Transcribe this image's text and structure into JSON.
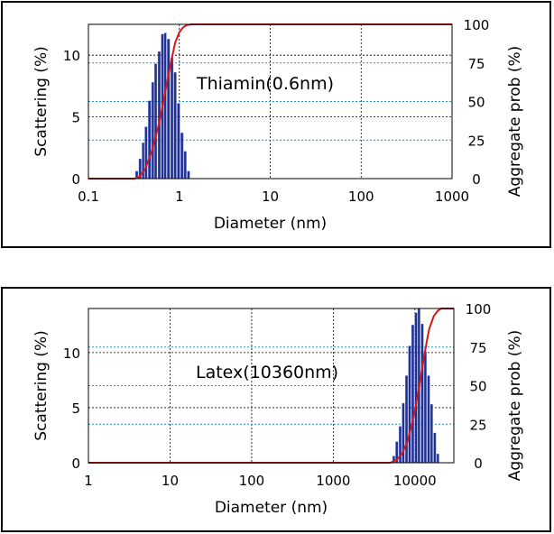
{
  "colors": {
    "bars": "#1f2f8f",
    "bar_edge": "#6f7fd0",
    "curve": "#d41818",
    "dotted_grid": "#1a96c8",
    "grid": "#000000"
  },
  "chart_data": [
    {
      "type": "bar",
      "title": "",
      "annotation": "Thiamin(0.6nm)",
      "xlabel": "Diameter (nm)",
      "ylabel": "Scattering (%)",
      "y2label": "Aggregate prob (%)",
      "x_scale": "log",
      "xlim": [
        0.1,
        1000
      ],
      "ylim": [
        0,
        12.5
      ],
      "y2lim": [
        0,
        100
      ],
      "xticks": [
        0.1,
        1,
        10,
        100,
        1000
      ],
      "xtick_labels": [
        "0.1",
        "1",
        "10",
        "100",
        "1000"
      ],
      "yticks": [
        0,
        5,
        10
      ],
      "ytick_labels": [
        "0",
        "5",
        "10"
      ],
      "y2ticks": [
        0,
        25,
        50,
        75,
        100
      ],
      "y2tick_labels": [
        "0",
        "25",
        "50",
        "75",
        "100"
      ],
      "grid": true,
      "series": [
        {
          "type": "bar",
          "axis": "left",
          "x": [
            0.34,
            0.37,
            0.4,
            0.43,
            0.47,
            0.51,
            0.55,
            0.6,
            0.65,
            0.7,
            0.76,
            0.83,
            0.9,
            0.98,
            1.07,
            1.16,
            1.26
          ],
          "values": [
            0.6,
            1.6,
            2.9,
            4.2,
            6.3,
            7.8,
            9.3,
            10.3,
            11.7,
            11.8,
            11.3,
            9.8,
            8.6,
            6.1,
            3.7,
            2.2,
            0.6
          ]
        },
        {
          "type": "line",
          "axis": "right",
          "x": [
            0.1,
            0.32,
            0.36,
            0.42,
            0.5,
            0.6,
            0.7,
            0.8,
            0.9,
            1.0,
            1.1,
            1.2,
            1.35,
            1000
          ],
          "values": [
            0,
            0,
            1,
            6,
            18,
            36,
            56,
            74,
            88,
            95,
            98,
            99.5,
            100,
            100
          ]
        }
      ]
    },
    {
      "type": "bar",
      "title": "",
      "annotation": "Latex(10360nm)",
      "xlabel": "Diameter (nm)",
      "ylabel": "Scattering (%)",
      "y2label": "Aggregate prob (%)",
      "x_scale": "log",
      "xlim": [
        1,
        30000
      ],
      "ylim": [
        0,
        14
      ],
      "y2lim": [
        0,
        100
      ],
      "xticks": [
        1,
        10,
        100,
        1000,
        10000
      ],
      "xtick_labels": [
        "1",
        "10",
        "100",
        "1000",
        "10000"
      ],
      "yticks": [
        0,
        5,
        10
      ],
      "ytick_labels": [
        "0",
        "5",
        "10"
      ],
      "y2ticks": [
        0,
        25,
        50,
        75,
        100
      ],
      "y2tick_labels": [
        "0",
        "25",
        "50",
        "75",
        "100"
      ],
      "grid": true,
      "series": [
        {
          "type": "bar",
          "axis": "left",
          "x": [
            5500,
            6000,
            6600,
            7200,
            7900,
            8600,
            9400,
            10300,
            11200,
            12300,
            13400,
            14700,
            16000,
            17500,
            19100
          ],
          "values": [
            0.6,
            1.9,
            3.3,
            5.4,
            7.9,
            10.6,
            12.5,
            13.6,
            14.0,
            12.6,
            10.1,
            7.9,
            5.3,
            2.7,
            0.8
          ]
        },
        {
          "type": "line",
          "axis": "right",
          "x": [
            1,
            5000,
            6000,
            7000,
            8000,
            9000,
            10000,
            11000,
            12000,
            13000,
            14000,
            15000,
            17000,
            19000,
            21000,
            30000
          ],
          "values": [
            0,
            0,
            2,
            6,
            13,
            23,
            34,
            46,
            58,
            69,
            79,
            87,
            95,
            98.5,
            100,
            100
          ]
        }
      ]
    }
  ]
}
